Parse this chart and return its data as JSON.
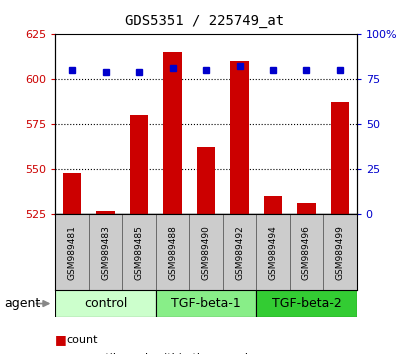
{
  "title": "GDS5351 / 225749_at",
  "samples": [
    "GSM989481",
    "GSM989483",
    "GSM989485",
    "GSM989488",
    "GSM989490",
    "GSM989492",
    "GSM989494",
    "GSM989496",
    "GSM989499"
  ],
  "counts": [
    548,
    527,
    580,
    615,
    562,
    610,
    535,
    531,
    587
  ],
  "percentile": [
    80,
    79,
    79,
    81,
    80,
    82,
    80,
    80,
    80
  ],
  "groups": [
    {
      "label": "control",
      "indices": [
        0,
        1,
        2
      ],
      "color": "#ccffcc"
    },
    {
      "label": "TGF-beta-1",
      "indices": [
        3,
        4,
        5
      ],
      "color": "#88ee88"
    },
    {
      "label": "TGF-beta-2",
      "indices": [
        6,
        7,
        8
      ],
      "color": "#33cc33"
    }
  ],
  "bar_color": "#cc0000",
  "dot_color": "#0000cc",
  "ylim_left": [
    525,
    625
  ],
  "ylim_right": [
    0,
    100
  ],
  "yticks_left": [
    525,
    550,
    575,
    600,
    625
  ],
  "yticks_right": [
    0,
    25,
    50,
    75,
    100
  ],
  "grid_lines": [
    550,
    575,
    600
  ],
  "tick_label_area_color": "#cccccc",
  "bar_bottom": 525,
  "bar_width": 0.55,
  "dot_size": 5,
  "title_fontsize": 10,
  "tick_fontsize": 8,
  "sample_fontsize": 6.5,
  "group_fontsize": 9,
  "legend_fontsize": 8
}
